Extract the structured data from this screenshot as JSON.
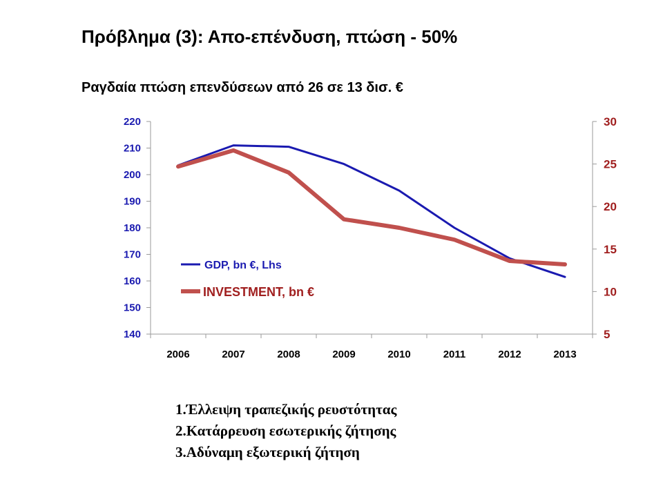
{
  "slide": {
    "title": "Πρόβλημα (3): Απο-επένδυση, πτώση - 50%",
    "subtitle": "Ραγδαία πτώση επενδύσεων από 26 σε 13 δισ. €",
    "points": [
      "1.Έλλειψη τραπεζικής ρευστότητας",
      "2.Κατάρρευση εσωτερικής ζήτησης",
      "3.Αδύναμη εξωτερική ζήτηση"
    ]
  },
  "chart_data": {
    "type": "line",
    "title": "",
    "categories": [
      "2006",
      "2007",
      "2008",
      "2009",
      "2010",
      "2011",
      "2012",
      "2013"
    ],
    "series": [
      {
        "name": "GDP, bn €, Lhs",
        "axis": "left",
        "color": "#1a1ab0",
        "values": [
          203.5,
          211,
          210.5,
          204,
          194,
          180,
          168.5,
          161.5
        ]
      },
      {
        "name": "INVESTMENT, bn €",
        "axis": "right",
        "color": "#c0504d",
        "values": [
          24.7,
          26.6,
          24,
          18.5,
          17.5,
          16.1,
          13.6,
          13.2
        ]
      }
    ],
    "y_left": {
      "min": 140,
      "max": 220,
      "ticks": [
        140,
        150,
        160,
        170,
        180,
        190,
        200,
        210,
        220
      ],
      "color": "#1a1ab0"
    },
    "y_right": {
      "min": 5,
      "max": 30,
      "ticks": [
        5,
        10,
        15,
        20,
        25,
        30
      ],
      "color": "#a01f1f"
    },
    "grid": false,
    "legend_position": "lower-left"
  }
}
